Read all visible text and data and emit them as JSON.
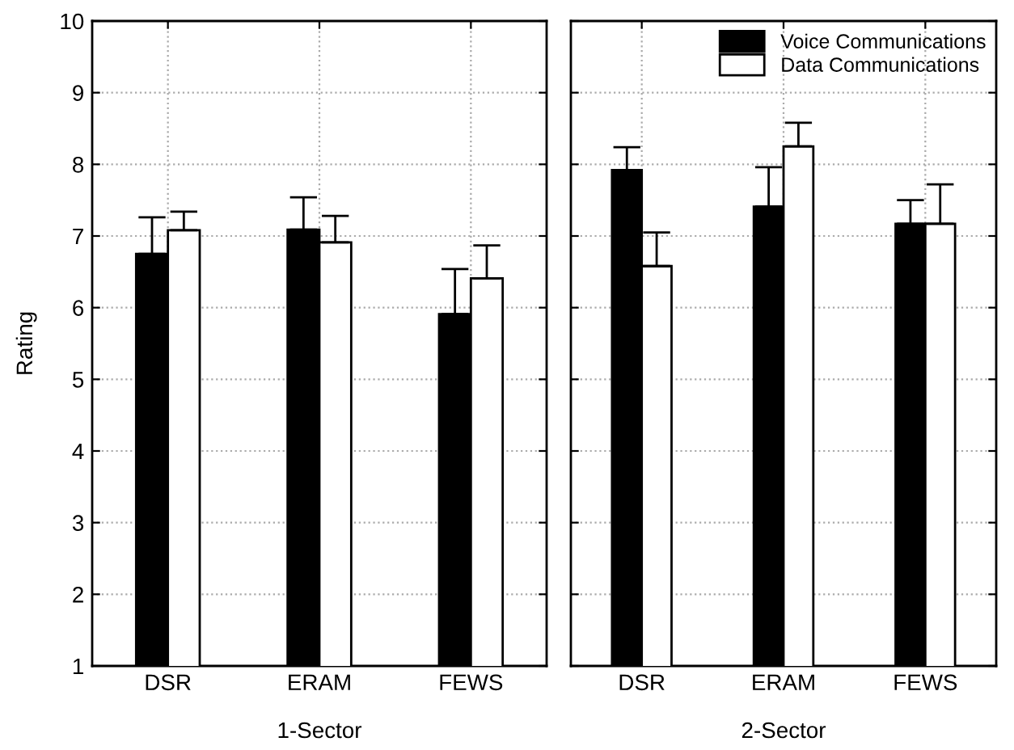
{
  "chart_data": [
    {
      "type": "bar",
      "xlabel": "1-Sector",
      "ylabel": "Rating",
      "categories": [
        "DSR",
        "ERAM",
        "FEWS"
      ],
      "ylim": [
        1,
        10
      ],
      "yticks": [
        1,
        2,
        3,
        4,
        5,
        6,
        7,
        8,
        9,
        10
      ],
      "grid": true,
      "legend": false,
      "series": [
        {
          "color": "#000000",
          "values": [
            6.75,
            7.09,
            5.91
          ],
          "errors": [
            [
              6.75,
              7.26
            ],
            [
              7.09,
              7.54
            ],
            [
              5.91,
              6.54
            ]
          ]
        },
        {
          "color": "#ffffff",
          "values": [
            7.08,
            6.91,
            6.41
          ],
          "errors": [
            [
              7.08,
              7.34
            ],
            [
              6.91,
              7.28
            ],
            [
              6.41,
              6.87
            ]
          ]
        }
      ]
    },
    {
      "type": "bar",
      "xlabel": "2-Sector",
      "categories": [
        "DSR",
        "ERAM",
        "FEWS"
      ],
      "ylim": [
        1,
        10
      ],
      "yticks": [
        1,
        2,
        3,
        4,
        5,
        6,
        7,
        8,
        9,
        10
      ],
      "grid": true,
      "legend": "top right",
      "tick_labels": "x",
      "series": [
        {
          "name": "Voice Communications",
          "color": "#000000",
          "values": [
            7.92,
            7.41,
            7.17
          ],
          "errors": [
            [
              7.92,
              8.24
            ],
            [
              7.41,
              7.96
            ],
            [
              7.17,
              7.5
            ]
          ]
        },
        {
          "name": "Data Communications",
          "color": "#ffffff",
          "values": [
            6.58,
            8.25,
            7.17
          ],
          "errors": [
            [
              6.58,
              7.05
            ],
            [
              8.25,
              8.58
            ],
            [
              7.17,
              7.72
            ]
          ]
        }
      ]
    }
  ]
}
